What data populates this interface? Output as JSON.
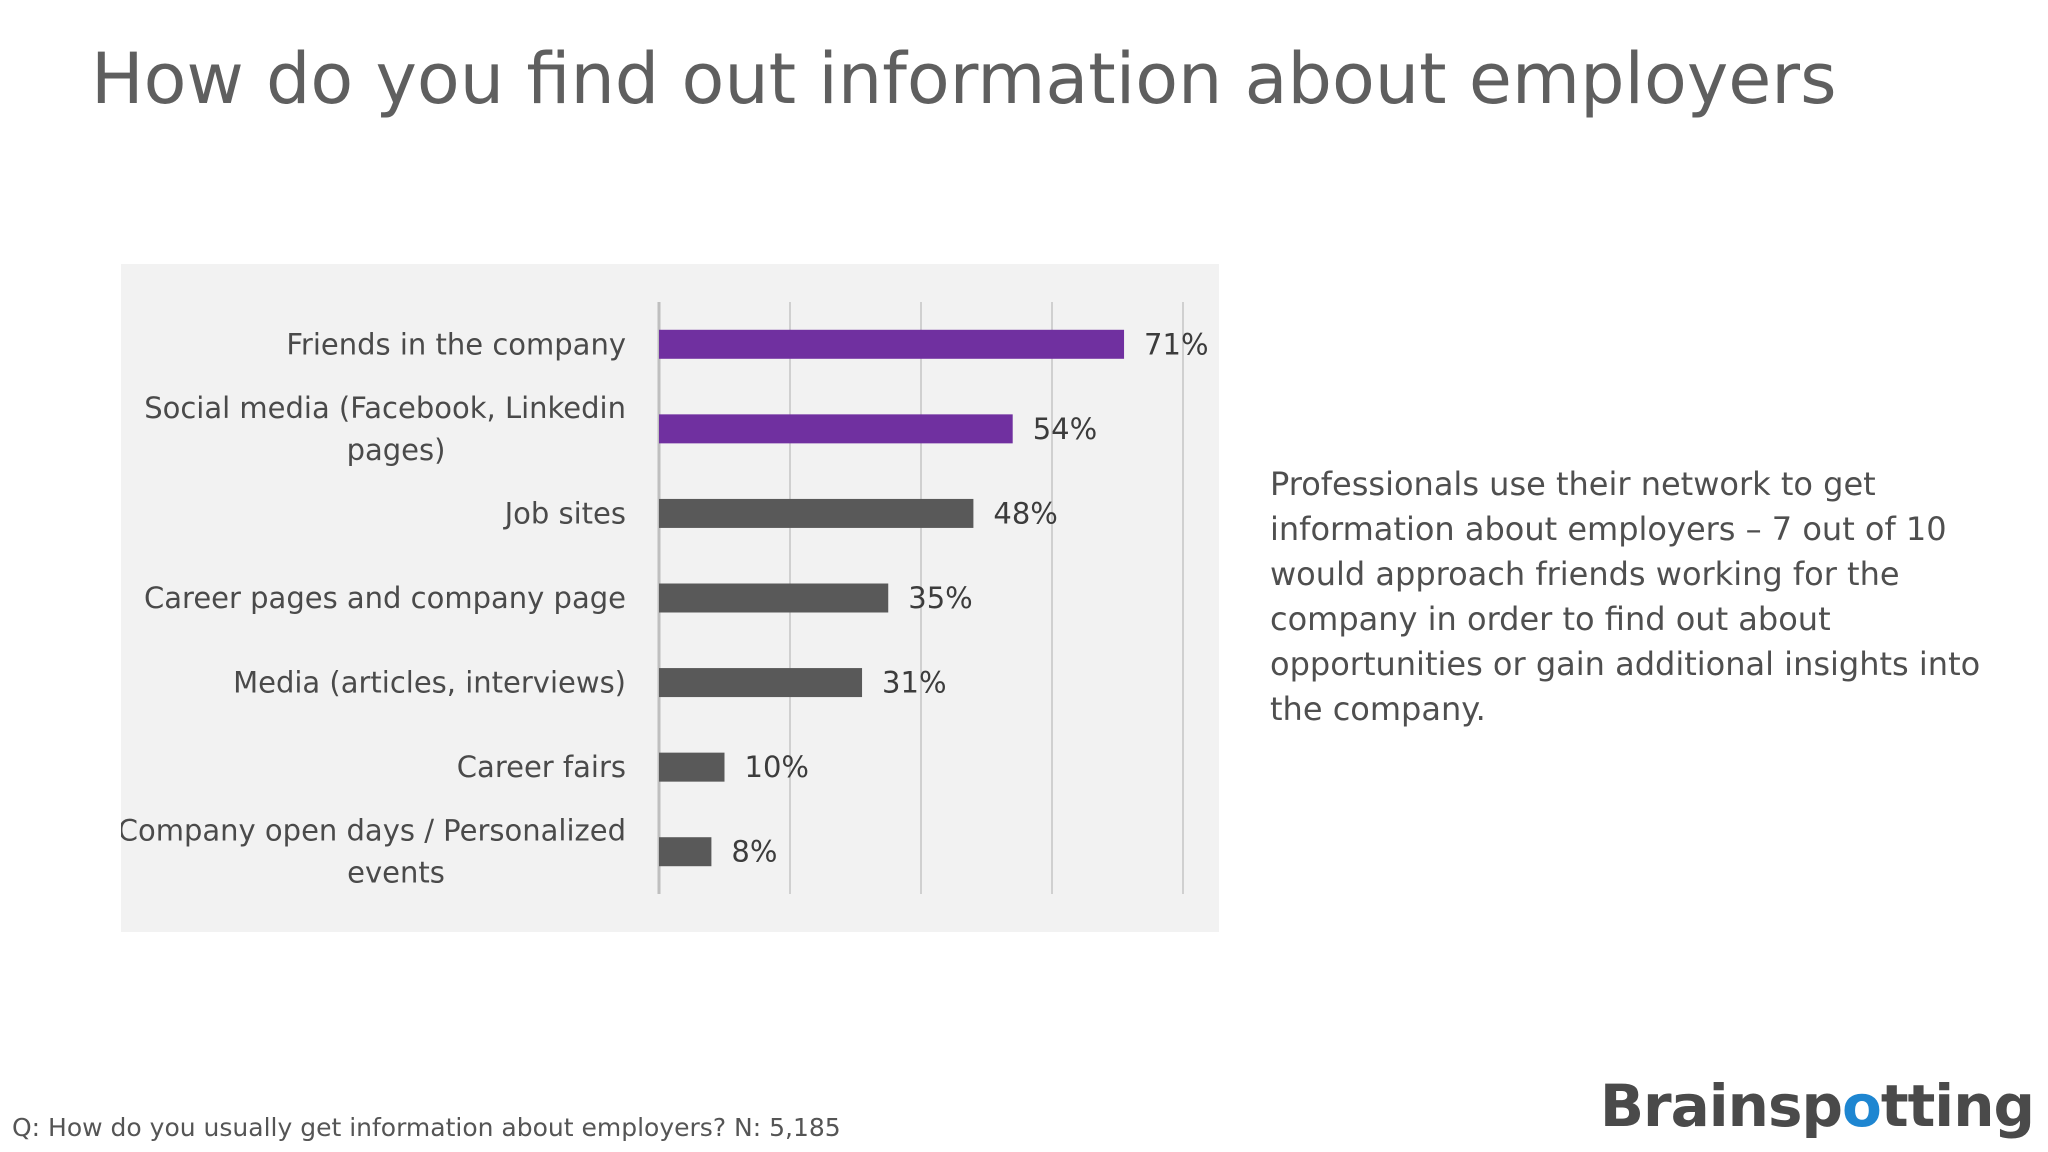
{
  "slide": {
    "title": "How do you find out information about employers",
    "insight": "Professionals use their network to get information about employers – 7 out of 10 would approach friends working for the company in order to find out about opportunities or gain additional insights into the company.",
    "footnote": "Q: How do you usually get information about employers? N: 5,185",
    "logo": {
      "before": "Brainsp",
      "accent": "o",
      "after": "tting",
      "accent_color": "#1e86d1"
    }
  },
  "chart_data": {
    "type": "bar",
    "orientation": "horizontal",
    "categories": [
      [
        "Friends in the company"
      ],
      [
        "Social media (Facebook, Linkedin",
        "pages)"
      ],
      [
        "Job sites"
      ],
      [
        "Career pages and company page"
      ],
      [
        "Media (articles, interviews)"
      ],
      [
        "Career fairs"
      ],
      [
        "Company open days / Personalized",
        "events"
      ]
    ],
    "values": [
      71,
      54,
      48,
      35,
      31,
      10,
      8
    ],
    "value_labels": [
      "71%",
      "54%",
      "48%",
      "35%",
      "31%",
      "10%",
      "8%"
    ],
    "bar_colors": [
      "#7030a0",
      "#7030a0",
      "#595959",
      "#595959",
      "#595959",
      "#595959",
      "#595959"
    ],
    "xlim": [
      0,
      80
    ],
    "grid": true,
    "gridline_step": 20,
    "background": "#f2f2f2"
  }
}
